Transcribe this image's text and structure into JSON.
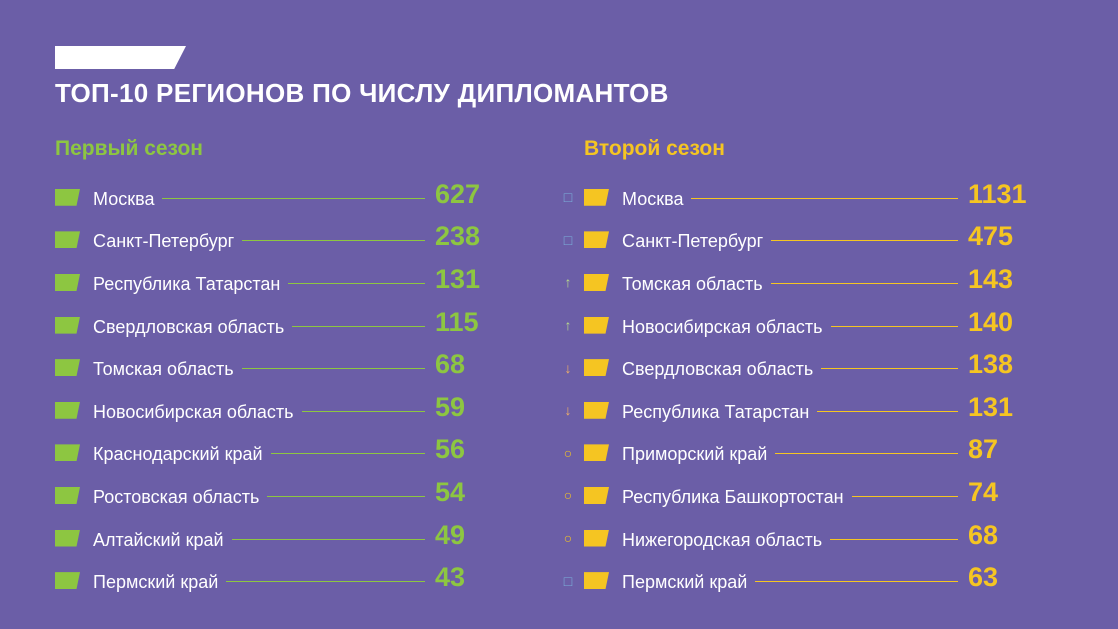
{
  "title": "ТОП-10 РЕГИОНОВ ПО ЧИСЛУ ДИПЛОМАНТОВ",
  "colors": {
    "background": "#6b5ea7",
    "season1_accent": "#8dc641",
    "season2_accent": "#f5c522",
    "trend_same": "#7bb3dc",
    "trend_up": "#b9dc8a",
    "trend_down": "#f2b066",
    "trend_new": "#f5c522"
  },
  "season1": {
    "heading": "Первый сезон",
    "rows": [
      {
        "region": "Москва",
        "value": "627"
      },
      {
        "region": "Санкт-Петербург",
        "value": "238"
      },
      {
        "region": "Республика Татарстан",
        "value": "131"
      },
      {
        "region": "Свердловская область",
        "value": "115"
      },
      {
        "region": "Томская область",
        "value": "68"
      },
      {
        "region": "Новосибирская область",
        "value": "59"
      },
      {
        "region": "Краснодарский край",
        "value": "56"
      },
      {
        "region": "Ростовская область",
        "value": "54"
      },
      {
        "region": "Алтайский край",
        "value": "49"
      },
      {
        "region": "Пермский край",
        "value": "43"
      }
    ]
  },
  "season2": {
    "heading": "Второй сезон",
    "rows": [
      {
        "trend": "□",
        "trend_kind": "same",
        "region": "Москва",
        "value": "1131"
      },
      {
        "trend": "□",
        "trend_kind": "same",
        "region": "Санкт-Петербург",
        "value": "475"
      },
      {
        "trend": "↑",
        "trend_kind": "up",
        "region": "Томская область",
        "value": "143"
      },
      {
        "trend": "↑",
        "trend_kind": "up",
        "region": "Новосибирская область",
        "value": "140"
      },
      {
        "trend": "↓",
        "trend_kind": "down",
        "region": "Свердловская область",
        "value": "138"
      },
      {
        "trend": "↓",
        "trend_kind": "down",
        "region": "Республика Татарстан",
        "value": "131"
      },
      {
        "trend": "○",
        "trend_kind": "new",
        "region": "Приморский край",
        "value": "87"
      },
      {
        "trend": "○",
        "trend_kind": "new",
        "region": "Республика Башкортостан",
        "value": "74"
      },
      {
        "trend": "○",
        "trend_kind": "new",
        "region": "Нижегородская область",
        "value": "68"
      },
      {
        "trend": "□",
        "trend_kind": "same",
        "region": "Пермский край",
        "value": "63"
      }
    ]
  }
}
